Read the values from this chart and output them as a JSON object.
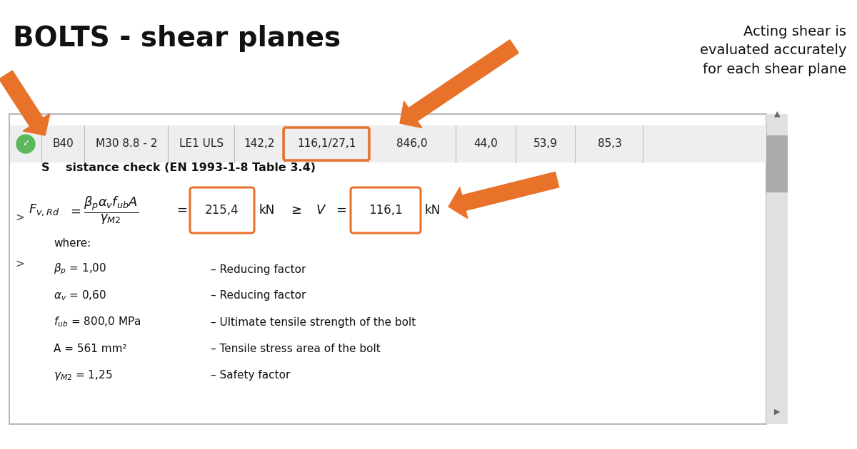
{
  "title": "BOLTS - shear planes",
  "annotation_text": "Acting shear is\nevaluated accurately\nfor each shear plane",
  "bg_color": "#ffffff",
  "panel_bg": "#f5f5f5",
  "panel_border": "#cccccc",
  "orange_color": "#E8722A",
  "table_row": {
    "cols": [
      "",
      "B40",
      "M30 8.8 - 2",
      "LE1 ULS",
      "142,2",
      "116,1/27,1",
      "846,0",
      "44,0",
      "53,9",
      "85,3"
    ],
    "highlighted_col": 5
  },
  "formula_text": "F_{v,Rd} = \\frac{\\beta_p \\alpha_v f_{ub} A}{\\gamma_{M2}} =",
  "value1": "215,4",
  "value2": "116,1",
  "unit": "kN",
  "ineq": "≥",
  "var_V": "V",
  "check_title": "S    sistance check (EN 1993-1-8 Table 3.4)",
  "where_items": [
    [
      "\\beta_p = 1,00",
      "– Reducing factor"
    ],
    [
      "\\alpha_v = 0,60",
      "– Reducing factor"
    ],
    [
      "f_{ub} = 800,0 MPa",
      "– Ultimate tensile strength of the bolt"
    ],
    [
      "A = 561 mm²",
      "– Tensile stress area of the bolt"
    ],
    [
      "\\gamma_{M2} = 1,25",
      "– Safety factor"
    ]
  ],
  "where_label": "where:"
}
